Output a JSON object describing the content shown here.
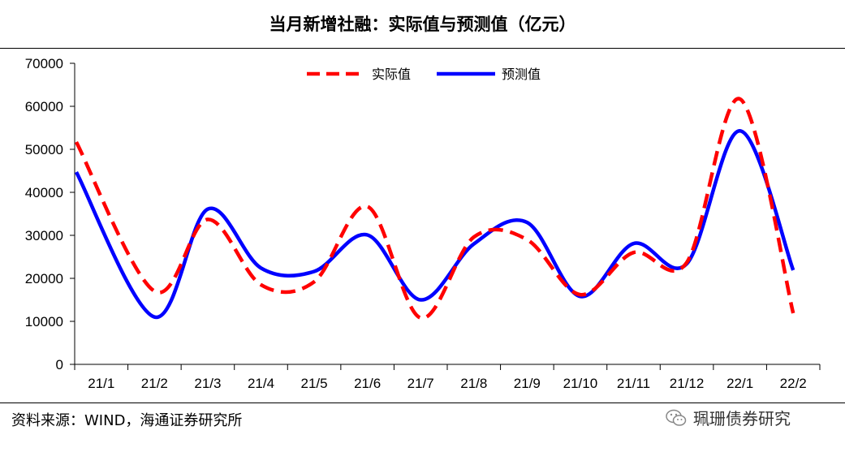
{
  "title": "当月新增社融：实际值与预测值（亿元）",
  "footer": {
    "source": "资料来源：WIND，海通证券研究所"
  },
  "watermark": {
    "text": "珮珊债券研究",
    "icon": "wechat-icon"
  },
  "colors": {
    "actual": "#ff0000",
    "forecast": "#0000ff"
  },
  "chart_data": {
    "type": "line",
    "title": "当月新增社融：实际值与预测值（亿元）",
    "categories": [
      "21/1",
      "21/2",
      "21/3",
      "21/4",
      "21/5",
      "21/6",
      "21/7",
      "21/8",
      "21/9",
      "21/10",
      "21/11",
      "21/12",
      "22/1",
      "22/2"
    ],
    "ylim": [
      0,
      70000
    ],
    "yticks": [
      0,
      10000,
      20000,
      30000,
      40000,
      50000,
      60000,
      70000
    ],
    "legend_position": "top",
    "smooth": true,
    "series": [
      {
        "name": "实际值",
        "style": "dashed",
        "color": "#ff0000",
        "values": [
          51700,
          17000,
          33700,
          18500,
          19200,
          36700,
          10800,
          29600,
          29000,
          16200,
          26000,
          23700,
          61700,
          11900
        ]
      },
      {
        "name": "预测值",
        "style": "solid",
        "color": "#0000ff",
        "values": [
          44700,
          11000,
          36100,
          22400,
          21600,
          30100,
          15000,
          28000,
          33000,
          15800,
          28100,
          23400,
          54300,
          21900
        ]
      }
    ]
  }
}
